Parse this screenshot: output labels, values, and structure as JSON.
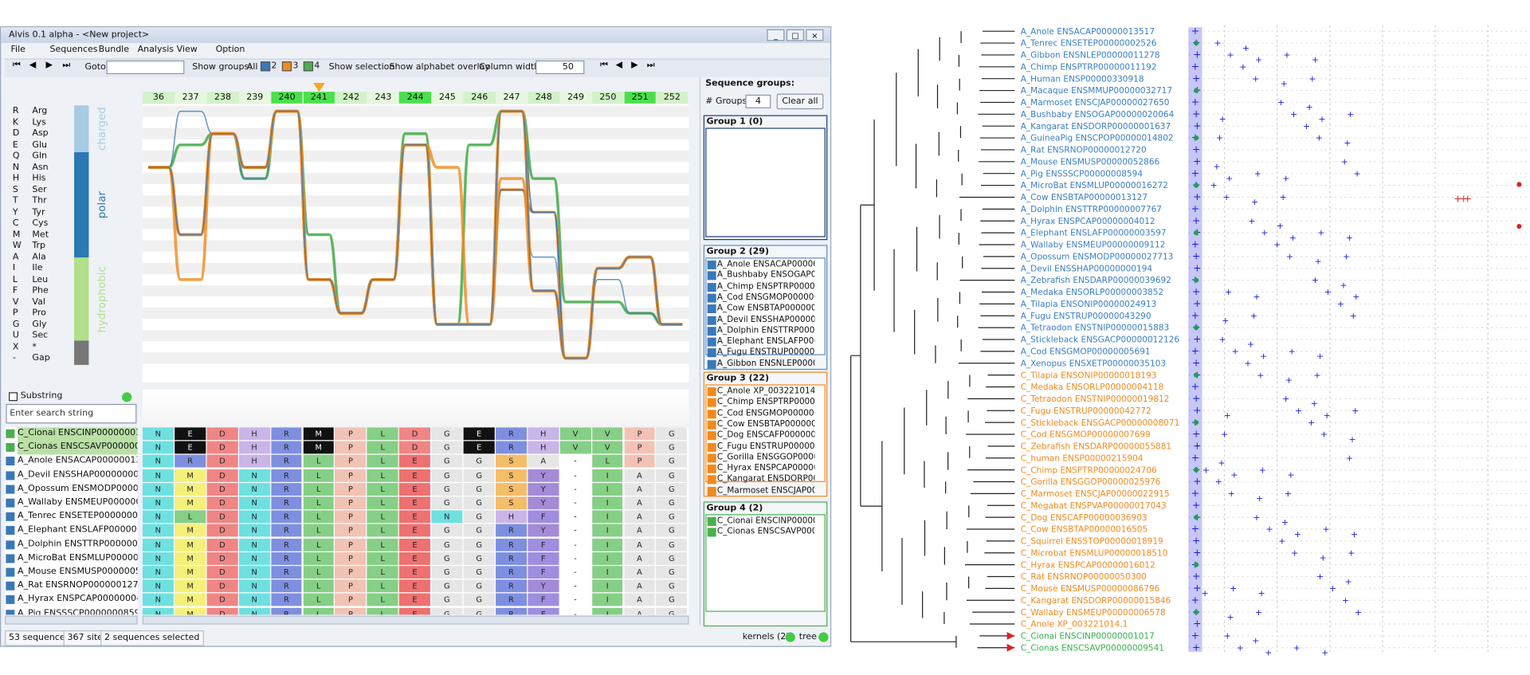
{
  "window": {
    "title": "Alvis 0.1 alpha - <New project>",
    "menu": [
      "File",
      "Sequences",
      "Bundle",
      "Analysis",
      "View",
      "Option"
    ]
  },
  "toolbar": {
    "goto": "Goto:",
    "show_groups": "Show groups:",
    "all": "All",
    "groups": [
      "2",
      "3",
      "4"
    ],
    "show_selection": "Show selection",
    "show_overlay": "Show alphabet overlay",
    "column_width": "Column width:",
    "column_width_value": "50"
  },
  "alphabet": {
    "letters": [
      [
        "R",
        "Arg"
      ],
      [
        "K",
        "Lys"
      ],
      [
        "D",
        "Asp"
      ],
      [
        "E",
        "Glu"
      ],
      [
        "Q",
        "Gln"
      ],
      [
        "N",
        "Asn"
      ],
      [
        "H",
        "His"
      ],
      [
        "S",
        "Ser"
      ],
      [
        "T",
        "Thr"
      ],
      [
        "Y",
        "Tyr"
      ],
      [
        "C",
        "Cys"
      ],
      [
        "M",
        "Met"
      ],
      [
        "W",
        "Trp"
      ],
      [
        "A",
        "Ala"
      ],
      [
        "I",
        "Ile"
      ],
      [
        "L",
        "Leu"
      ],
      [
        "F",
        "Phe"
      ],
      [
        "V",
        "Val"
      ],
      [
        "P",
        "Pro"
      ],
      [
        "G",
        "Gly"
      ],
      [
        "U",
        "Sec"
      ],
      [
        "X",
        "*"
      ],
      [
        "-",
        "Gap"
      ]
    ],
    "classes": [
      "charged",
      "polar",
      "hydrophobic"
    ]
  },
  "columns": [
    "36",
    "237",
    "238",
    "239",
    "240",
    "241",
    "242",
    "243",
    "244",
    "245",
    "246",
    "247",
    "248",
    "249",
    "250",
    "251",
    "252"
  ],
  "alignment": {
    "substring": "Substring",
    "placeholder": "Enter search string",
    "names": [
      "C_Cionai ENSCINP00000001017",
      "C_Cionas ENSCSAVP00000009541",
      "A_Anole ENSACAP00000013517",
      "A_Devil ENSSHAP00000000194",
      "A_Opossum ENSMODP00000027713",
      "A_Wallaby ENSMEUP00000009112",
      "A_Tenrec ENSETEP00000002526",
      "A_Elephant ENSLAFP00000003597",
      "A_Dolphin ENSTTRP00000007767",
      "A_MicroBat ENSMLUP00000016272",
      "A_Mouse ENSMUSP00000052866",
      "A_Rat ENSRNOP00000012720",
      "A_Hyrax ENSPCAP00000004012",
      "A_Pig ENSSSCP00000008594"
    ],
    "rows": [
      "NEDHRMPLDGERHVVPG",
      "NEDHRMPLDGERHVVPG",
      "NRDHRLPLEGGSA-LPG",
      "NMDNRLPLEGGSY-IAG",
      "NMDNRLPLEGGSY-IAG",
      "NMDNRLPLEGGSY-IAG",
      "NLDNRLPLENGHF-IAG",
      "NMDNRLPLEGGRY-IAG",
      "NMDNRLPLEGGRF-IAG",
      "NMDNRLPLEGGRF-IAG",
      "NMDNRLPLEGGRF-IAG",
      "NMDNRLPLEGGRY-IAG",
      "NMDNRLPLEGGRF-IAG",
      "NMDNRLPLEGGRF-IAG"
    ]
  },
  "groups_panel": {
    "title": "Sequence groups:",
    "n_groups_label": "# Groups:",
    "n_groups": "4",
    "clear": "Clear all",
    "groups": [
      {
        "title": "Group 1 (0)",
        "members": []
      },
      {
        "title": "Group 2 (29)",
        "members": [
          "A_Anole ENSACAP00000013517",
          "A_Bushbaby ENSOGAP00000020064",
          "A_Chimp ENSPTRP00000011192",
          "A_Cod ENSGMOP00000005691",
          "A_Cow ENSBTAP00000013127",
          "A_Devil ENSSHAP00000000194",
          "A_Dolphin ENSTTRP00000007767",
          "A_Elephant ENSLAFP00000003597",
          "A_Fugu ENSTRUP00000043290",
          "A_Gibbon ENSNLEP00000011278"
        ]
      },
      {
        "title": "Group 3 (22)",
        "members": [
          "C_Anole XP_003221014.1",
          "C_Chimp ENSPTRP00000024706",
          "C_Cod ENSGMOP00000007699",
          "C_Cow ENSBTAP00000016505",
          "C_Dog ENSCAFP00000036903",
          "C_Fugu ENSTRUP00000042772",
          "C_Gorilla ENSGGOP00000025976",
          "C_Hyrax ENSPCAP00000016012",
          "C_Kangarat ENSDORP00000015846",
          "C_Marmoset ENSCJAP00000022915"
        ]
      },
      {
        "title": "Group 4 (2)",
        "members": [
          "C_Cionai ENSCINP00000001017",
          "C_Cionas ENSCSAVP00000009541"
        ]
      }
    ]
  },
  "status": {
    "left": [
      "53 sequences",
      "367 sites",
      "2 sequences selected"
    ],
    "right": [
      "kernels (2)",
      "tree"
    ]
  },
  "tree": {
    "leaves": [
      "A_Anole ENSACAP00000013517",
      "A_Tenrec ENSETEP00000002526",
      "A_Gibbon ENSNLEP00000011278",
      "A_Chimp ENSPTRP00000011192",
      "A_Human ENSP00000330918",
      "A_Macaque ENSMMUP00000032717",
      "A_Marmoset ENSCJAP00000027650",
      "A_Bushbaby ENSOGAP00000020064",
      "A_Kangarat ENSDORP00000001637",
      "A_GuineaPig ENSCPOP00000014802",
      "A_Rat ENSRNOP00000012720",
      "A_Mouse ENSMUSP00000052866",
      "A_Pig ENSSSCP00000008594",
      "A_MicroBat ENSMLUP00000016272",
      "A_Cow ENSBTAP00000013127",
      "A_Dolphin ENSTTRP00000007767",
      "A_Hyrax ENSPCAP00000004012",
      "A_Elephant ENSLAFP00000003597",
      "A_Wallaby ENSMEUP00000009112",
      "A_Opossum ENSMODP00000027713",
      "A_Devil ENSSHAP00000000194",
      "A_Zebrafish ENSDARP00000039692",
      "A_Medaka ENSORLP00000003852",
      "A_Tilapia ENSONIP00000024913",
      "A_Fugu ENSTRUP00000043290",
      "A_Tetraodon ENSTNIP00000015883",
      "A_Stickleback ENSGACP00000012126",
      "A_Cod ENSGMOP00000005691",
      "A_Xenopus ENSXETP00000035103",
      "C_Tilapia ENSONIP00000018193",
      "C_Medaka ENSORLP00000004118",
      "C_Tetraodon ENSTNIP00000019812",
      "C_Fugu ENSTRUP00000042772",
      "C_Stickleback ENSGACP00000008071",
      "C_Cod ENSGMOP00000007699",
      "C_Zebrafish ENSDARP00000055881",
      "C_human ENSP00000215904",
      "C_Chimp ENSPTRP00000024706",
      "C_Gorilla ENSGGOP00000025976",
      "C_Marmoset ENSCJAP00000022915",
      "C_Megabat ENSPVAP00000017043",
      "C_Dog ENSCAFP00000036903",
      "C_Cow ENSBTAP00000016505",
      "C_Squirrel ENSSTOP00000018919",
      "C_Microbat ENSMLUP00000018510",
      "C_Hyrax ENSPCAP00000016012",
      "C_Rat ENSRNOP00000050300",
      "C_Mouse ENSMUSP00000086796",
      "C_Kangarat ENSDORP00000015846",
      "C_Wallaby ENSMEUP00000006578",
      "C_Anole XP_003221014.1",
      "C_Cionai ENSCINP00000001017",
      "C_Cionas ENSCSAVP00000009541"
    ]
  }
}
